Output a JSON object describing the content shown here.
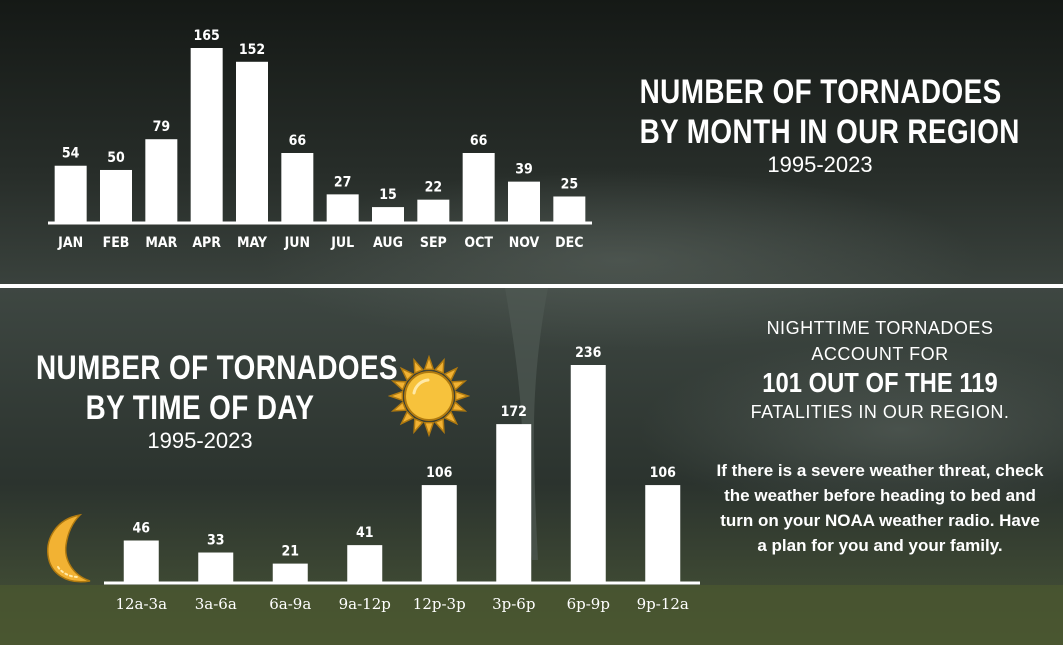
{
  "colors": {
    "background": "#1f2420",
    "bar": "#ffffff",
    "text": "#ffffff",
    "sun": "#f2b233",
    "moon": "#f2b233"
  },
  "chart_data": [
    {
      "type": "bar",
      "title": "NUMBER OF TORNADOES BY MONTH IN OUR REGION",
      "subtitle": "1995-2023",
      "categories": [
        "JAN",
        "FEB",
        "MAR",
        "APR",
        "MAY",
        "JUN",
        "JUL",
        "AUG",
        "SEP",
        "OCT",
        "NOV",
        "DEC"
      ],
      "values": [
        54,
        50,
        79,
        165,
        152,
        66,
        27,
        15,
        22,
        66,
        39,
        25
      ],
      "xlabel": "",
      "ylabel": "",
      "ylim": [
        0,
        165
      ],
      "grid": false,
      "data_labels": true
    },
    {
      "type": "bar",
      "title": "NUMBER OF TORNADOES BY TIME OF DAY",
      "subtitle": "1995-2023",
      "categories": [
        "12a-3a",
        "3a-6a",
        "6a-9a",
        "9a-12p",
        "12p-3p",
        "3p-6p",
        "6p-9p",
        "9p-12a"
      ],
      "values": [
        46,
        33,
        21,
        41,
        106,
        172,
        236,
        106
      ],
      "xlabel": "",
      "ylabel": "",
      "ylim": [
        0,
        236
      ],
      "grid": false,
      "data_labels": true
    }
  ],
  "month_title": {
    "line1": "NUMBER OF TORNADOES",
    "line2": "BY MONTH IN OUR REGION",
    "subtitle": "1995-2023"
  },
  "tod_title": {
    "line1": "NUMBER OF TORNADOES",
    "line2": "BY TIME OF DAY",
    "subtitle": "1995-2023"
  },
  "fatalities": {
    "line1": "NIGHTTIME TORNADOES",
    "line2": "ACCOUNT FOR",
    "emphasis": "101 OUT OF THE 119",
    "line3": "FATALITIES IN OUR REGION."
  },
  "advice": {
    "text": "If there is a severe weather threat, check the weather before heading to bed and turn on your NOAA weather radio. Have a plan for you and your family."
  },
  "icons": {
    "sun": "sun-icon",
    "moon": "crescent-moon-icon"
  }
}
